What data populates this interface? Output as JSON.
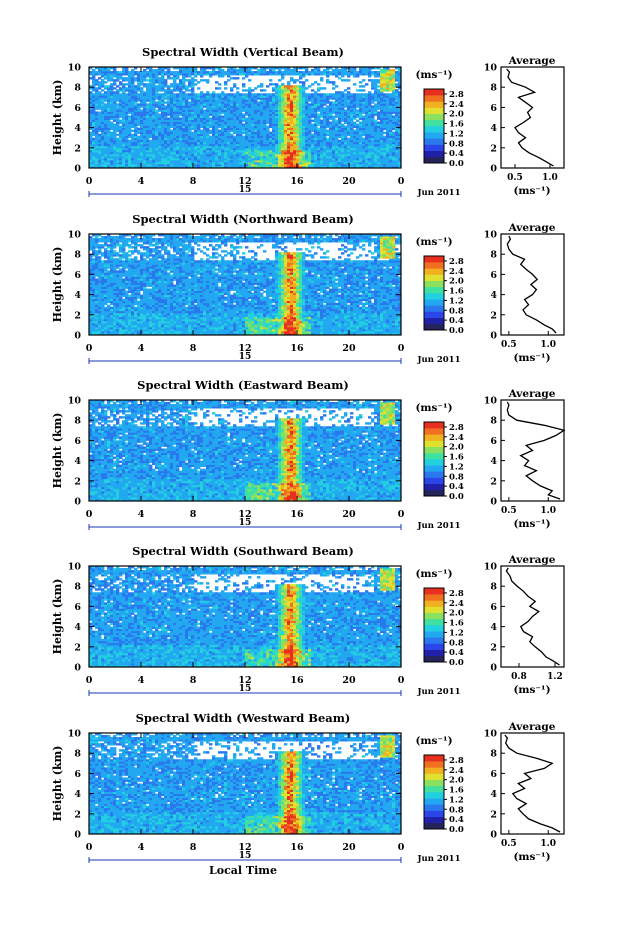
{
  "figure": {
    "common": {
      "date_label": "Jun 2011",
      "day_label": "15",
      "xlabel": "Local Time",
      "ylabel": "Height (km)",
      "colorbar_unit": "(ms⁻¹)",
      "avg_title": "Average",
      "avg_xlabel": "(ms⁻¹)"
    },
    "colors": {
      "colormap": [
        "#24245a",
        "#2020a8",
        "#2a45e8",
        "#2a78ee",
        "#22a8f0",
        "#22d0e0",
        "#40e0a0",
        "#8ce060",
        "#e0e030",
        "#f0b020",
        "#f07020",
        "#e83020"
      ]
    }
  },
  "chart_data": [
    {
      "type": "heatmap",
      "title": "Spectral Width (Vertical Beam)",
      "x_ticks": [
        "0",
        "4",
        "8",
        "12",
        "16",
        "20",
        "0"
      ],
      "xlim": [
        0,
        24
      ],
      "y_ticks": [
        "0",
        "2",
        "4",
        "6",
        "8",
        "10"
      ],
      "ylim": [
        0,
        10
      ],
      "colorbar_ticks": [
        "2.8",
        "2.4",
        "2.0",
        "1.6",
        "1.2",
        "0.8",
        "0.4",
        "0.0"
      ],
      "colorbar_range": [
        0.0,
        3.0
      ],
      "avg_profile": {
        "x_ticks": [
          "0.5",
          "1.0"
        ],
        "xlim": [
          0.3,
          1.2
        ],
        "y_ticks": [
          "0",
          "2",
          "4",
          "6",
          "8",
          "10"
        ],
        "ylim": [
          0,
          10
        ],
        "height_km": [
          0.2,
          0.6,
          1.0,
          1.5,
          2.0,
          2.5,
          3.0,
          3.5,
          4.0,
          4.5,
          5.0,
          5.5,
          6.0,
          6.5,
          7.0,
          7.5,
          8.0,
          8.5,
          9.0,
          9.5,
          9.8
        ],
        "width_ms": [
          1.05,
          0.95,
          0.85,
          0.7,
          0.6,
          0.55,
          0.65,
          0.55,
          0.5,
          0.62,
          0.72,
          0.68,
          0.75,
          0.65,
          0.55,
          0.78,
          0.65,
          0.45,
          0.4,
          0.42,
          0.38
        ]
      }
    },
    {
      "type": "heatmap",
      "title": "Spectral Width (Northward Beam)",
      "x_ticks": [
        "0",
        "4",
        "8",
        "12",
        "16",
        "20",
        "0"
      ],
      "xlim": [
        0,
        24
      ],
      "y_ticks": [
        "0",
        "2",
        "4",
        "6",
        "8",
        "10"
      ],
      "ylim": [
        0,
        10
      ],
      "colorbar_ticks": [
        "2.8",
        "2.4",
        "2.0",
        "1.6",
        "1.2",
        "0.8",
        "0.4",
        "0.0"
      ],
      "colorbar_range": [
        0.0,
        3.0
      ],
      "avg_profile": {
        "x_ticks": [
          "0.5",
          "1.0"
        ],
        "xlim": [
          0.4,
          1.2
        ],
        "y_ticks": [
          "0",
          "2",
          "4",
          "6",
          "8",
          "10"
        ],
        "ylim": [
          0,
          10
        ],
        "height_km": [
          0.2,
          0.6,
          1.0,
          1.5,
          2.0,
          2.5,
          3.0,
          3.5,
          4.0,
          4.5,
          5.0,
          5.5,
          6.0,
          6.5,
          7.0,
          7.5,
          8.0,
          8.5,
          9.0,
          9.5,
          9.8
        ],
        "width_ms": [
          1.1,
          1.05,
          0.95,
          0.85,
          0.72,
          0.68,
          0.75,
          0.7,
          0.8,
          0.85,
          0.78,
          0.86,
          0.8,
          0.72,
          0.65,
          0.7,
          0.55,
          0.5,
          0.48,
          0.52,
          0.5
        ]
      }
    },
    {
      "type": "heatmap",
      "title": "Spectral Width (Eastward Beam)",
      "x_ticks": [
        "0",
        "4",
        "8",
        "12",
        "16",
        "20",
        "0"
      ],
      "xlim": [
        0,
        24
      ],
      "y_ticks": [
        "0",
        "2",
        "4",
        "6",
        "8",
        "10"
      ],
      "ylim": [
        0,
        10
      ],
      "colorbar_ticks": [
        "2.8",
        "2.4",
        "2.0",
        "1.6",
        "1.2",
        "0.8",
        "0.4",
        "0.0"
      ],
      "colorbar_range": [
        0.0,
        3.0
      ],
      "avg_profile": {
        "x_ticks": [
          "0.5",
          "1.0"
        ],
        "xlim": [
          0.4,
          1.2
        ],
        "y_ticks": [
          "0",
          "2",
          "4",
          "6",
          "8",
          "10"
        ],
        "ylim": [
          0,
          10
        ],
        "height_km": [
          0.2,
          0.6,
          1.0,
          1.5,
          2.0,
          2.5,
          3.0,
          3.5,
          4.0,
          4.5,
          5.0,
          5.5,
          6.0,
          6.5,
          7.0,
          7.5,
          8.0,
          8.5,
          9.0,
          9.5,
          9.8
        ],
        "width_ms": [
          1.15,
          1.0,
          1.05,
          0.9,
          0.8,
          0.72,
          0.85,
          0.7,
          0.75,
          0.65,
          0.8,
          0.72,
          0.95,
          1.1,
          1.2,
          0.95,
          0.6,
          0.5,
          0.48,
          0.5,
          0.48
        ]
      }
    },
    {
      "type": "heatmap",
      "title": "Spectral Width (Southward Beam)",
      "x_ticks": [
        "0",
        "4",
        "8",
        "12",
        "16",
        "20",
        "0"
      ],
      "xlim": [
        0,
        24
      ],
      "y_ticks": [
        "0",
        "2",
        "4",
        "6",
        "8",
        "10"
      ],
      "ylim": [
        0,
        10
      ],
      "colorbar_ticks": [
        "2.8",
        "2.4",
        "2.0",
        "1.6",
        "1.2",
        "0.8",
        "0.4",
        "0.0"
      ],
      "colorbar_range": [
        0.0,
        3.0
      ],
      "avg_profile": {
        "x_ticks": [
          "0.8",
          "1.2"
        ],
        "xlim": [
          0.6,
          1.3
        ],
        "y_ticks": [
          "0",
          "2",
          "4",
          "6",
          "8",
          "10"
        ],
        "ylim": [
          0,
          10
        ],
        "height_km": [
          0.2,
          0.6,
          1.0,
          1.5,
          2.0,
          2.5,
          3.0,
          3.5,
          4.0,
          4.5,
          5.0,
          5.5,
          6.0,
          6.5,
          7.0,
          7.5,
          8.0,
          8.5,
          9.0,
          9.5,
          9.8
        ],
        "width_ms": [
          1.25,
          1.18,
          1.1,
          1.05,
          0.98,
          0.92,
          0.95,
          0.85,
          0.82,
          0.9,
          0.95,
          1.02,
          0.92,
          0.98,
          0.9,
          0.85,
          0.78,
          0.72,
          0.7,
          0.66,
          0.68
        ]
      }
    },
    {
      "type": "heatmap",
      "title": "Spectral Width (Westward Beam)",
      "x_ticks": [
        "0",
        "4",
        "8",
        "12",
        "16",
        "20",
        "0"
      ],
      "xlim": [
        0,
        24
      ],
      "y_ticks": [
        "0",
        "2",
        "4",
        "6",
        "8",
        "10"
      ],
      "ylim": [
        0,
        10
      ],
      "colorbar_ticks": [
        "2.8",
        "2.4",
        "2.0",
        "1.6",
        "1.2",
        "0.8",
        "0.4",
        "0.0"
      ],
      "colorbar_range": [
        0.0,
        3.0
      ],
      "avg_profile": {
        "x_ticks": [
          "0.5",
          "1.0"
        ],
        "xlim": [
          0.4,
          1.2
        ],
        "y_ticks": [
          "0",
          "2",
          "4",
          "6",
          "8",
          "10"
        ],
        "ylim": [
          0,
          10
        ],
        "height_km": [
          0.2,
          0.6,
          1.0,
          1.5,
          2.0,
          2.5,
          3.0,
          3.5,
          4.0,
          4.5,
          5.0,
          5.5,
          6.0,
          6.5,
          7.0,
          7.5,
          8.0,
          8.5,
          9.0,
          9.5,
          9.8
        ],
        "width_ms": [
          1.15,
          1.05,
          0.9,
          0.75,
          0.68,
          0.62,
          0.72,
          0.6,
          0.55,
          0.7,
          0.62,
          0.78,
          0.7,
          0.95,
          1.05,
          0.85,
          0.6,
          0.5,
          0.46,
          0.48,
          0.45
        ]
      }
    }
  ]
}
